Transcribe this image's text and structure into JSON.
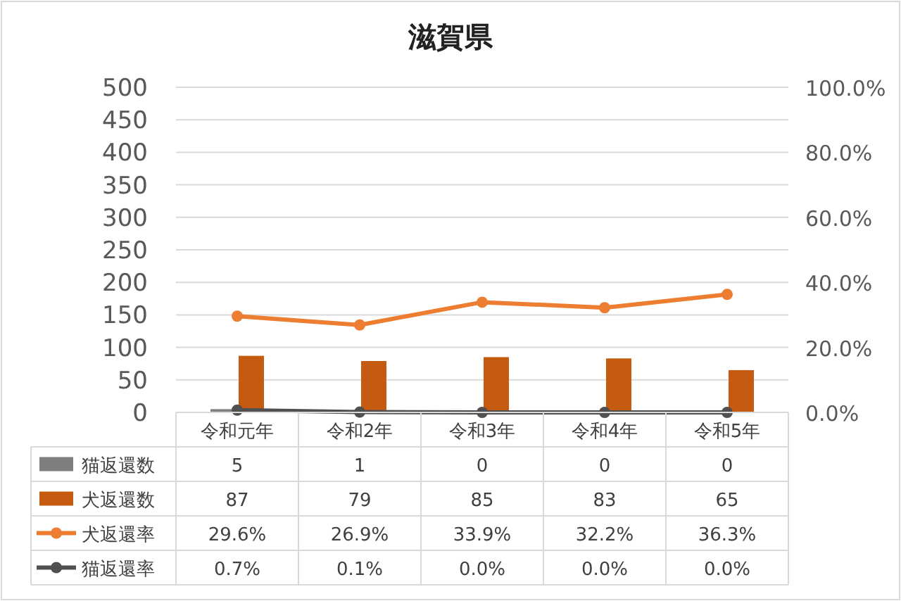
{
  "chart_data": {
    "type": "bar",
    "title": "滋賀県",
    "categories": [
      "令和元年",
      "令和2年",
      "令和3年",
      "令和4年",
      "令和5年"
    ],
    "series": [
      {
        "name": "猫返還数",
        "color": "#7f7f7f",
        "values": [
          5,
          1,
          0,
          0,
          0
        ],
        "value_labels": [
          "5",
          "1",
          "0",
          "0",
          "0"
        ]
      },
      {
        "name": "犬返還数",
        "color": "#c55a11",
        "values": [
          87,
          79,
          85,
          83,
          65
        ],
        "value_labels": [
          "87",
          "79",
          "85",
          "83",
          "65"
        ]
      },
      {
        "name": "犬返還率",
        "type": "line",
        "axis": "y2",
        "color": "#ed7d31",
        "values": [
          29.6,
          26.9,
          33.9,
          32.2,
          36.3
        ],
        "value_labels": [
          "29.6%",
          "26.9%",
          "33.9%",
          "32.2%",
          "36.3%"
        ]
      },
      {
        "name": "猫返還率",
        "type": "line",
        "axis": "y2",
        "color": "#505050",
        "values": [
          0.7,
          0.1,
          0.0,
          0.0,
          0.0
        ],
        "value_labels": [
          "0.7%",
          "0.1%",
          "0.0%",
          "0.0%",
          "0.0%"
        ]
      }
    ],
    "ylim": [
      0,
      500
    ],
    "yticks": [
      0,
      50,
      100,
      150,
      200,
      250,
      300,
      350,
      400,
      450,
      500
    ],
    "y2lim": [
      0,
      100
    ],
    "y2ticks": [
      {
        "value": 0,
        "label": "0.0%"
      },
      {
        "value": 20,
        "label": "20.0%"
      },
      {
        "value": 40,
        "label": "40.0%"
      },
      {
        "value": 60,
        "label": "60.0%"
      },
      {
        "value": 80,
        "label": "80.0%"
      },
      {
        "value": 100,
        "label": "100.0%"
      }
    ],
    "grid": "y",
    "legend": "bottom",
    "marker": "circle",
    "line_style": "solid"
  }
}
